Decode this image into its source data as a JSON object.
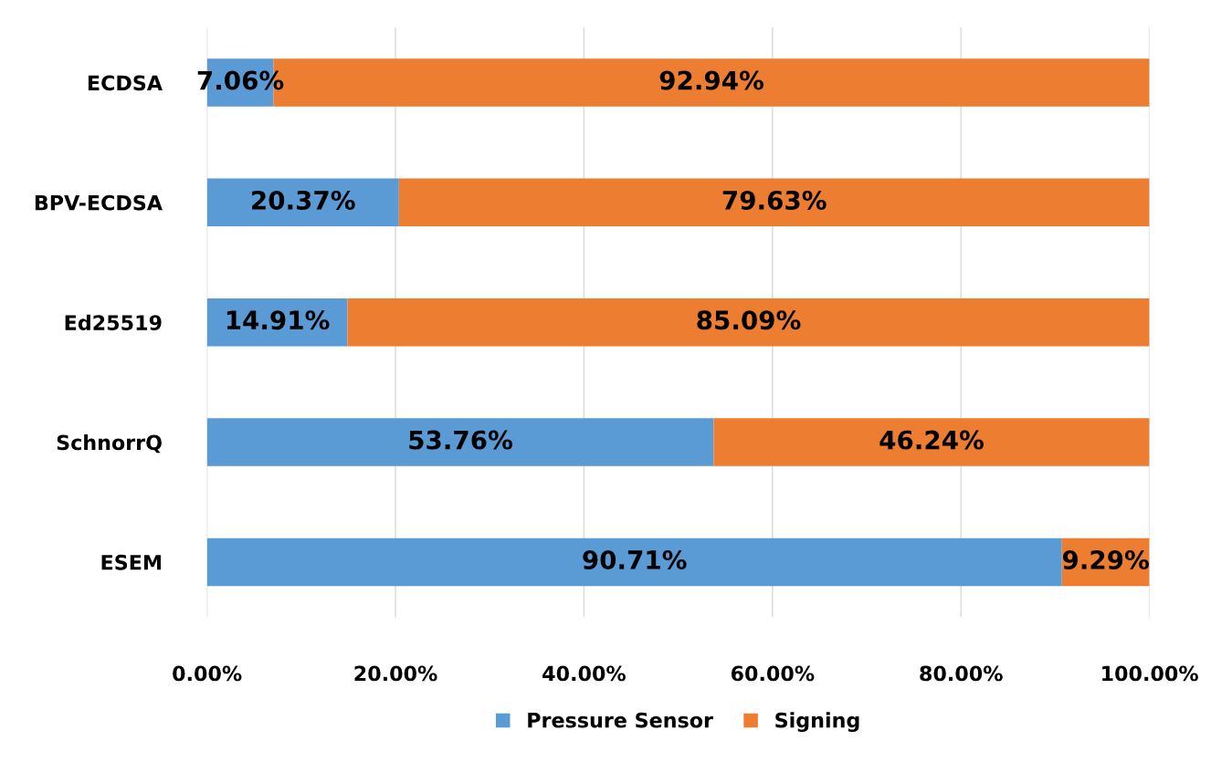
{
  "chart_data": {
    "type": "bar",
    "orientation": "horizontal",
    "stacked": true,
    "categories": [
      "ECDSA",
      "BPV-ECDSA",
      "Ed25519",
      "SchnorrQ",
      "ESEM"
    ],
    "series": [
      {
        "name": "Pressure Sensor",
        "color": "#5b9bd5",
        "values": [
          7.06,
          20.37,
          14.91,
          53.76,
          90.71
        ],
        "value_labels": [
          "7.06%",
          "20.37%",
          "14.91%",
          "53.76%",
          "90.71%"
        ]
      },
      {
        "name": "Signing",
        "color": "#ed7d31",
        "values": [
          92.94,
          79.63,
          85.09,
          46.24,
          9.29
        ],
        "value_labels": [
          "92.94%",
          "79.63%",
          "85.09%",
          "46.24%",
          "9.29%"
        ]
      }
    ],
    "xlim": [
      0,
      100
    ],
    "xticks": [
      {
        "value": 0,
        "label": "0.00%"
      },
      {
        "value": 20,
        "label": "20.00%"
      },
      {
        "value": 40,
        "label": "40.00%"
      },
      {
        "value": 60,
        "label": "60.00%"
      },
      {
        "value": 80,
        "label": "80.00%"
      },
      {
        "value": 100,
        "label": "100.00%"
      }
    ],
    "grid": "x",
    "legend": "bottom"
  }
}
